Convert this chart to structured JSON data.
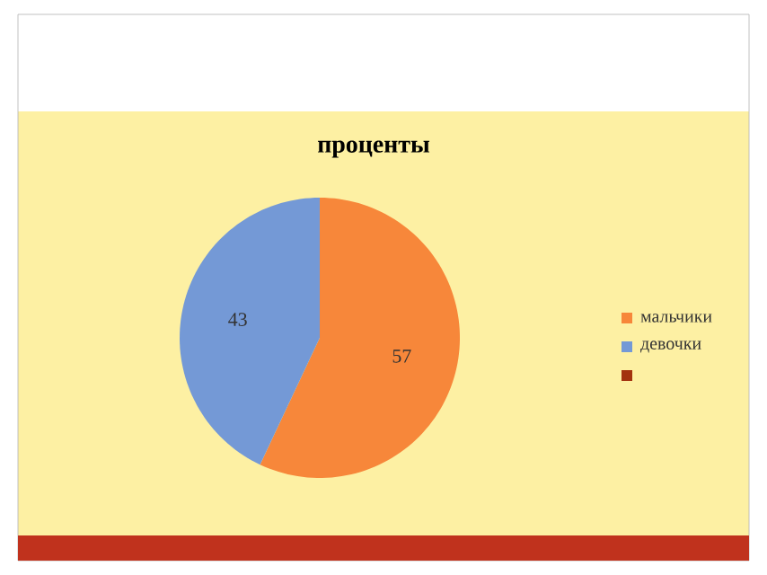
{
  "chart_data": {
    "type": "pie",
    "title": "проценты",
    "categories": [
      "мальчики",
      "девочки",
      null
    ],
    "values": [
      57,
      43,
      null
    ],
    "colors": [
      "#f7873a",
      "#7499d6",
      "#a3330f"
    ],
    "data_labels": true,
    "legend": "right"
  }
}
